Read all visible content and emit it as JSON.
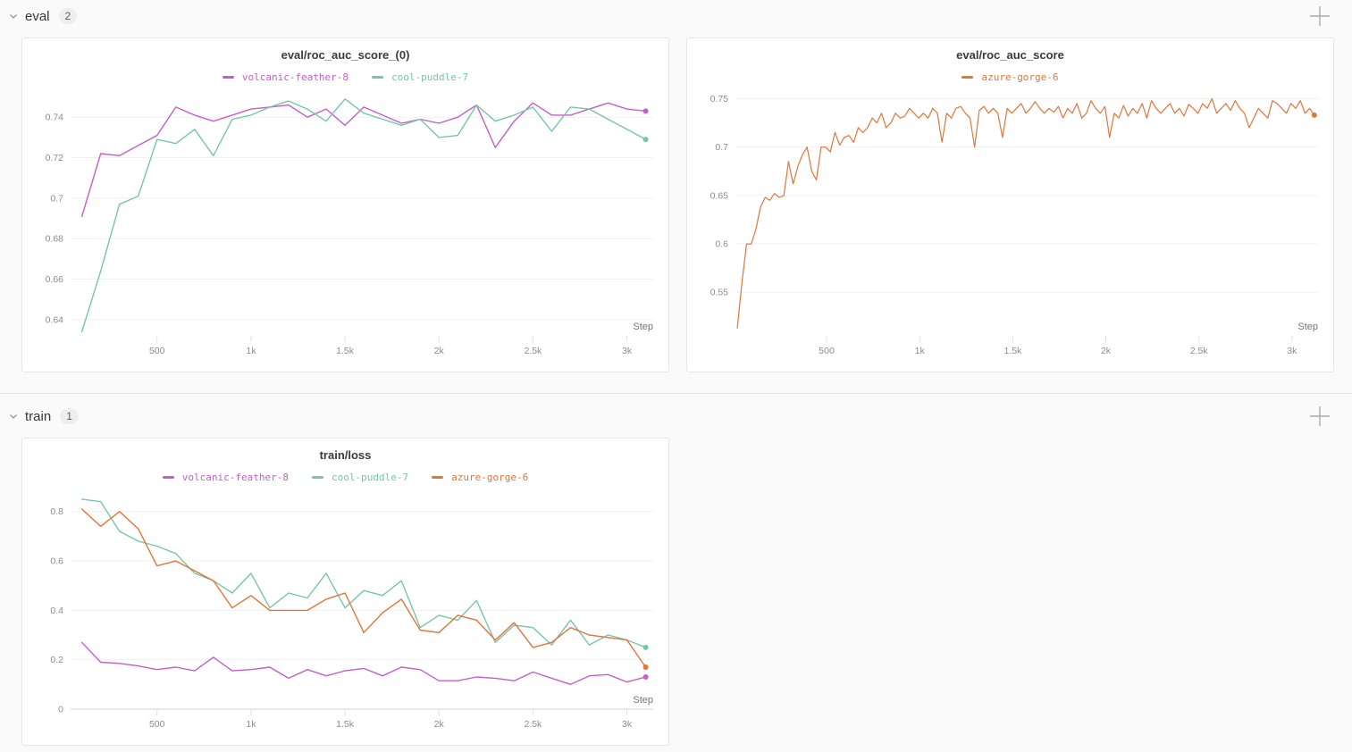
{
  "page": {
    "background": "#fafafa",
    "panel_border": "#e6e6e6"
  },
  "sections": [
    {
      "label": "eval",
      "badge": "2"
    },
    {
      "label": "train",
      "badge": "1"
    }
  ],
  "icons": {
    "chevron_down": "chevron-down",
    "add_panel": "+"
  },
  "runs": [
    {
      "name": "volcanic-feather-8",
      "color": "#C35FC8"
    },
    {
      "name": "cool-puddle-7",
      "color": "#76C6A8"
    },
    {
      "name": "azure-gorge-6",
      "color": "#E57439"
    }
  ],
  "chart_data": [
    {
      "type": "line",
      "title": "eval/roc_auc_score_(0)",
      "xlabel": "Step",
      "legend_position": "top",
      "grid": true,
      "x_ticks": [
        {
          "v": 500,
          "label": "500"
        },
        {
          "v": 1000,
          "label": "1k"
        },
        {
          "v": 1500,
          "label": "1.5k"
        },
        {
          "v": 2000,
          "label": "2k"
        },
        {
          "v": 2500,
          "label": "2.5k"
        },
        {
          "v": 3000,
          "label": "3k"
        }
      ],
      "y_ticks": [
        0.64,
        0.66,
        0.68,
        0.7,
        0.72,
        0.74
      ],
      "xlim": [
        40,
        3140
      ],
      "ylim": [
        0.632,
        0.752
      ],
      "axis_at_zero": false,
      "series": [
        {
          "run": "volcanic-feather-8",
          "x": [
            100,
            200,
            300,
            400,
            500,
            600,
            700,
            800,
            900,
            1000,
            1100,
            1200,
            1300,
            1400,
            1500,
            1600,
            1700,
            1800,
            1900,
            2000,
            2100,
            2200,
            2300,
            2400,
            2500,
            2600,
            2700,
            2800,
            2900,
            3000,
            3100
          ],
          "y": [
            0.691,
            0.722,
            0.721,
            0.726,
            0.731,
            0.745,
            0.741,
            0.738,
            0.741,
            0.744,
            0.745,
            0.746,
            0.74,
            0.744,
            0.736,
            0.745,
            0.741,
            0.737,
            0.739,
            0.737,
            0.74,
            0.746,
            0.725,
            0.738,
            0.747,
            0.741,
            0.741,
            0.744,
            0.747,
            0.744,
            0.743
          ]
        },
        {
          "run": "cool-puddle-7",
          "x": [
            100,
            200,
            300,
            400,
            500,
            600,
            700,
            800,
            900,
            1000,
            1100,
            1200,
            1300,
            1400,
            1500,
            1600,
            1700,
            1800,
            1900,
            2000,
            2100,
            2200,
            2300,
            2400,
            2500,
            2600,
            2700,
            2800,
            2900,
            3000,
            3100
          ],
          "y": [
            0.634,
            0.664,
            0.697,
            0.701,
            0.729,
            0.727,
            0.734,
            0.721,
            0.739,
            0.741,
            0.745,
            0.748,
            0.744,
            0.738,
            0.749,
            0.742,
            0.739,
            0.736,
            0.739,
            0.73,
            0.731,
            0.746,
            0.738,
            0.741,
            0.745,
            0.733,
            0.745,
            0.744,
            0.739,
            0.734,
            0.729
          ]
        }
      ]
    },
    {
      "type": "line",
      "title": "eval/roc_auc_score",
      "xlabel": "Step",
      "legend_position": "top",
      "grid": true,
      "x_ticks": [
        {
          "v": 500,
          "label": "500"
        },
        {
          "v": 1000,
          "label": "1k"
        },
        {
          "v": 1500,
          "label": "1.5k"
        },
        {
          "v": 2000,
          "label": "2k"
        },
        {
          "v": 2500,
          "label": "2.5k"
        },
        {
          "v": 3000,
          "label": "3k"
        }
      ],
      "y_ticks": [
        0.55,
        0.6,
        0.65,
        0.7,
        0.75
      ],
      "xlim": [
        10,
        3140
      ],
      "ylim": [
        0.505,
        0.756
      ],
      "axis_at_zero": false,
      "series": [
        {
          "run": "azure-gorge-6",
          "x": [
            20,
            45,
            70,
            95,
            120,
            145,
            170,
            195,
            220,
            245,
            270,
            295,
            320,
            345,
            370,
            395,
            420,
            445,
            470,
            495,
            520,
            545,
            570,
            595,
            620,
            645,
            670,
            695,
            720,
            745,
            770,
            795,
            820,
            845,
            870,
            895,
            920,
            945,
            970,
            995,
            1020,
            1045,
            1070,
            1095,
            1120,
            1145,
            1170,
            1195,
            1220,
            1245,
            1270,
            1295,
            1320,
            1345,
            1370,
            1395,
            1420,
            1445,
            1470,
            1495,
            1520,
            1545,
            1570,
            1595,
            1620,
            1645,
            1670,
            1695,
            1720,
            1745,
            1770,
            1795,
            1820,
            1845,
            1870,
            1895,
            1920,
            1945,
            1970,
            1995,
            2020,
            2045,
            2070,
            2095,
            2120,
            2145,
            2170,
            2195,
            2220,
            2245,
            2270,
            2295,
            2320,
            2345,
            2370,
            2395,
            2420,
            2445,
            2470,
            2495,
            2520,
            2545,
            2570,
            2595,
            2620,
            2645,
            2670,
            2695,
            2720,
            2745,
            2770,
            2795,
            2820,
            2845,
            2870,
            2895,
            2920,
            2945,
            2970,
            2995,
            3020,
            3045,
            3070,
            3095,
            3120
          ],
          "y": [
            0.513,
            0.56,
            0.6,
            0.6,
            0.615,
            0.638,
            0.648,
            0.645,
            0.652,
            0.648,
            0.65,
            0.685,
            0.662,
            0.68,
            0.692,
            0.7,
            0.675,
            0.666,
            0.7,
            0.7,
            0.695,
            0.715,
            0.702,
            0.71,
            0.712,
            0.705,
            0.72,
            0.715,
            0.72,
            0.73,
            0.725,
            0.735,
            0.72,
            0.725,
            0.735,
            0.73,
            0.732,
            0.74,
            0.735,
            0.73,
            0.735,
            0.73,
            0.74,
            0.735,
            0.705,
            0.735,
            0.73,
            0.74,
            0.742,
            0.735,
            0.73,
            0.7,
            0.738,
            0.742,
            0.735,
            0.74,
            0.735,
            0.71,
            0.74,
            0.735,
            0.74,
            0.745,
            0.735,
            0.74,
            0.747,
            0.74,
            0.735,
            0.74,
            0.736,
            0.742,
            0.73,
            0.74,
            0.735,
            0.745,
            0.73,
            0.735,
            0.748,
            0.74,
            0.735,
            0.742,
            0.71,
            0.735,
            0.73,
            0.743,
            0.732,
            0.74,
            0.735,
            0.745,
            0.73,
            0.748,
            0.74,
            0.735,
            0.74,
            0.745,
            0.735,
            0.74,
            0.732,
            0.744,
            0.74,
            0.735,
            0.745,
            0.74,
            0.75,
            0.735,
            0.74,
            0.745,
            0.738,
            0.748,
            0.74,
            0.735,
            0.72,
            0.73,
            0.74,
            0.735,
            0.73,
            0.748,
            0.745,
            0.74,
            0.735,
            0.745,
            0.74,
            0.748,
            0.735,
            0.74,
            0.733
          ]
        }
      ]
    },
    {
      "type": "line",
      "title": "train/loss",
      "xlabel": "Step",
      "legend_position": "top",
      "grid": true,
      "x_ticks": [
        {
          "v": 500,
          "label": "500"
        },
        {
          "v": 1000,
          "label": "1k"
        },
        {
          "v": 1500,
          "label": "1.5k"
        },
        {
          "v": 2000,
          "label": "2k"
        },
        {
          "v": 2500,
          "label": "2.5k"
        },
        {
          "v": 3000,
          "label": "3k"
        }
      ],
      "y_ticks": [
        0,
        0.2,
        0.4,
        0.6,
        0.8
      ],
      "xlim": [
        40,
        3140
      ],
      "ylim": [
        0,
        0.875
      ],
      "axis_at_zero": true,
      "series": [
        {
          "run": "volcanic-feather-8",
          "x": [
            100,
            200,
            300,
            400,
            500,
            600,
            700,
            800,
            900,
            1000,
            1100,
            1200,
            1300,
            1400,
            1500,
            1600,
            1700,
            1800,
            1900,
            2000,
            2100,
            2200,
            2300,
            2400,
            2500,
            2600,
            2700,
            2800,
            2900,
            3000,
            3100
          ],
          "y": [
            0.27,
            0.19,
            0.185,
            0.175,
            0.16,
            0.17,
            0.155,
            0.21,
            0.155,
            0.16,
            0.17,
            0.125,
            0.16,
            0.135,
            0.155,
            0.165,
            0.135,
            0.17,
            0.16,
            0.115,
            0.115,
            0.13,
            0.125,
            0.115,
            0.15,
            0.125,
            0.1,
            0.135,
            0.14,
            0.11,
            0.13
          ]
        },
        {
          "run": "cool-puddle-7",
          "x": [
            100,
            200,
            300,
            400,
            500,
            600,
            700,
            800,
            900,
            1000,
            1100,
            1200,
            1300,
            1400,
            1500,
            1600,
            1700,
            1800,
            1900,
            2000,
            2100,
            2200,
            2300,
            2400,
            2500,
            2600,
            2700,
            2800,
            2900,
            3000,
            3100
          ],
          "y": [
            0.85,
            0.84,
            0.72,
            0.68,
            0.66,
            0.63,
            0.55,
            0.52,
            0.47,
            0.55,
            0.41,
            0.47,
            0.45,
            0.55,
            0.41,
            0.48,
            0.46,
            0.52,
            0.33,
            0.38,
            0.36,
            0.44,
            0.27,
            0.34,
            0.33,
            0.26,
            0.36,
            0.26,
            0.3,
            0.28,
            0.25
          ]
        },
        {
          "run": "azure-gorge-6",
          "x": [
            100,
            200,
            300,
            400,
            500,
            600,
            700,
            800,
            900,
            1000,
            1100,
            1200,
            1300,
            1400,
            1500,
            1600,
            1700,
            1800,
            1900,
            2000,
            2100,
            2200,
            2300,
            2400,
            2500,
            2600,
            2700,
            2800,
            2900,
            3000,
            3100
          ],
          "y": [
            0.81,
            0.74,
            0.8,
            0.73,
            0.58,
            0.6,
            0.56,
            0.52,
            0.41,
            0.46,
            0.4,
            0.4,
            0.4,
            0.445,
            0.47,
            0.31,
            0.39,
            0.445,
            0.32,
            0.31,
            0.38,
            0.36,
            0.28,
            0.35,
            0.25,
            0.27,
            0.33,
            0.3,
            0.29,
            0.28,
            0.17
          ]
        }
      ]
    }
  ],
  "axis_style": {
    "grid_color": "#f1f1f1",
    "zero_axis_color": "#dcdcdc",
    "tick_mark_color": "#e0e0e0",
    "tick_label_color": "#8c8c8c",
    "step_label_color": "#757575"
  }
}
